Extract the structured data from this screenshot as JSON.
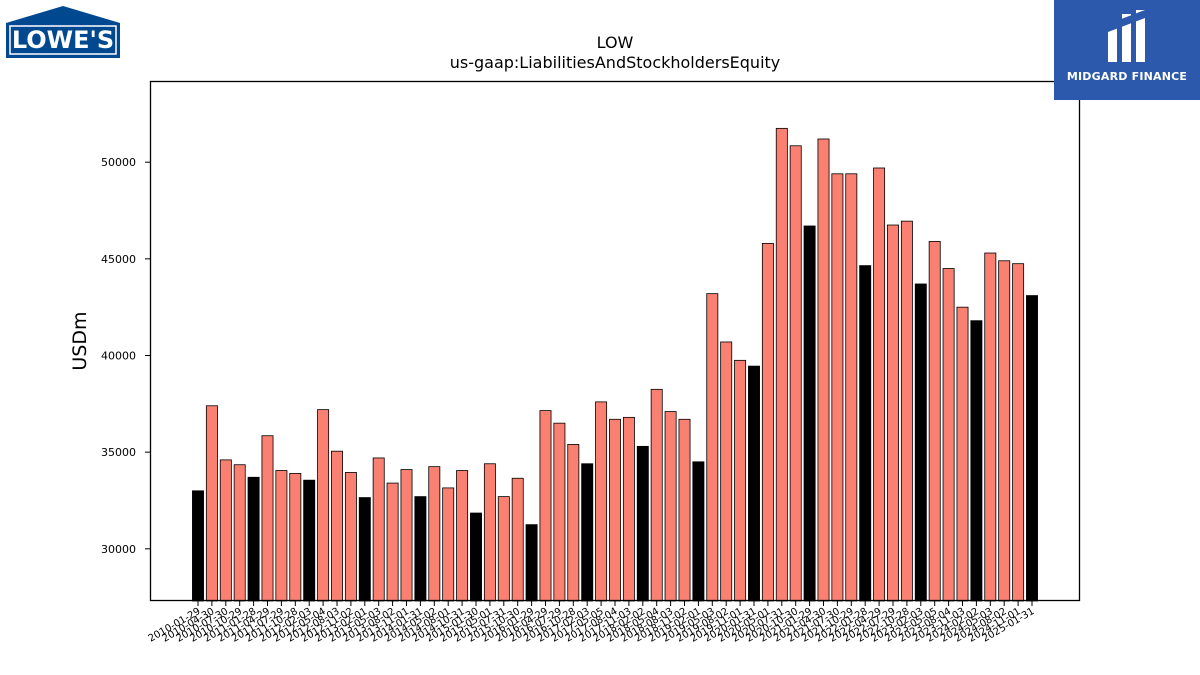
{
  "logos": {
    "left": {
      "text": "LOWE'S",
      "color": "#004990"
    },
    "right": {
      "text": "MIDGARD FINANCE",
      "color": "#2c59ab"
    }
  },
  "chart_data": {
    "type": "bar",
    "title": "LOW",
    "subtitle": "us-gaap:LiabilitiesAndStockholdersEquity",
    "xlabel": "",
    "ylabel": "USDm",
    "ylim": [
      27300,
      54200
    ],
    "yticks": [
      30000,
      35000,
      40000,
      45000,
      50000
    ],
    "grid": false,
    "legend": "none",
    "colors": {
      "annual": "#000000",
      "quarterly": "#fa8072"
    },
    "categories": [
      "2010-01-29",
      "2010-04-30",
      "2010-07-30",
      "2010-10-29",
      "2011-01-28",
      "2011-04-29",
      "2011-07-29",
      "2011-10-28",
      "2012-02-03",
      "2012-05-04",
      "2012-08-03",
      "2012-11-02",
      "2013-02-01",
      "2013-05-03",
      "2013-08-02",
      "2013-11-01",
      "2014-01-31",
      "2014-05-02",
      "2014-08-01",
      "2014-10-31",
      "2015-01-30",
      "2015-05-01",
      "2015-07-31",
      "2015-10-30",
      "2016-01-29",
      "2016-04-29",
      "2016-07-29",
      "2016-10-28",
      "2017-02-03",
      "2017-05-05",
      "2017-08-04",
      "2017-11-03",
      "2018-02-02",
      "2018-05-04",
      "2018-08-03",
      "2018-11-02",
      "2019-02-01",
      "2019-05-03",
      "2019-08-02",
      "2019-11-01",
      "2020-01-31",
      "2020-05-01",
      "2020-07-31",
      "2020-10-30",
      "2021-01-29",
      "2021-04-30",
      "2021-07-30",
      "2021-10-29",
      "2022-01-28",
      "2022-04-29",
      "2022-07-29",
      "2022-10-28",
      "2023-02-03",
      "2023-05-05",
      "2023-08-04",
      "2023-11-03",
      "2024-02-02",
      "2024-05-03",
      "2024-08-02",
      "2024-11-01",
      "2025-01-31"
    ],
    "values": [
      33000,
      37400,
      34600,
      34350,
      33700,
      35850,
      34050,
      33900,
      33550,
      37200,
      35050,
      33950,
      32650,
      34700,
      33400,
      34100,
      32700,
      34250,
      33150,
      34050,
      31850,
      34400,
      32700,
      33650,
      31250,
      37150,
      36500,
      35400,
      34400,
      37600,
      36700,
      36800,
      35300,
      38250,
      37100,
      36700,
      34500,
      43200,
      40700,
      39750,
      39450,
      45800,
      51750,
      50850,
      46700,
      51200,
      49400,
      49400,
      44650,
      49700,
      46750,
      46950,
      43700,
      45900,
      44500,
      42500,
      41800,
      45300,
      44900,
      44750,
      43100
    ],
    "annual": [
      true,
      false,
      false,
      false,
      true,
      false,
      false,
      false,
      true,
      false,
      false,
      false,
      true,
      false,
      false,
      false,
      true,
      false,
      false,
      false,
      true,
      false,
      false,
      false,
      true,
      false,
      false,
      false,
      true,
      false,
      false,
      false,
      true,
      false,
      false,
      false,
      true,
      false,
      false,
      false,
      true,
      false,
      false,
      false,
      true,
      false,
      false,
      false,
      true,
      false,
      false,
      false,
      true,
      false,
      false,
      false,
      true,
      false,
      false,
      false,
      true
    ]
  }
}
